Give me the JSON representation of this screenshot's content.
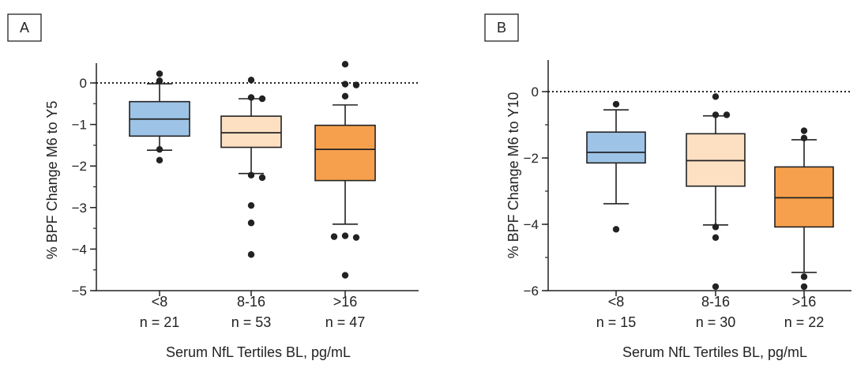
{
  "chart_data": [
    {
      "type": "box",
      "panel_label": "A",
      "ylabel": "% BPF Change M6 to Y5",
      "xlabel": "Serum NfL Tertiles BL, pg/mL",
      "ylim": [
        -5,
        0.5
      ],
      "yticks": [
        0,
        -1,
        -2,
        -3,
        -4,
        -5
      ],
      "reference_line": 0,
      "groups": [
        {
          "label": "<8",
          "n_label": "n = 21",
          "color": "#9dc3e6",
          "whisker_low": -1.62,
          "q1": -1.28,
          "median": -0.87,
          "q3": -0.45,
          "whisker_high": -0.02,
          "outliers": [
            0.22,
            0.05,
            -1.6,
            -1.86
          ]
        },
        {
          "label": "8-16",
          "n_label": "n = 53",
          "color": "#fde0c2",
          "whisker_low": -2.18,
          "q1": -1.55,
          "median": -1.2,
          "q3": -0.8,
          "whisker_high": -0.38,
          "outliers": [
            0.07,
            -0.35,
            -0.38,
            -2.22,
            -2.28,
            -2.95,
            -3.37,
            -4.13
          ]
        },
        {
          "label": ">16",
          "n_label": "n = 47",
          "color": "#f6a04d",
          "whisker_low": -3.4,
          "q1": -2.35,
          "median": -1.6,
          "q3": -1.02,
          "whisker_high": -0.53,
          "outliers": [
            0.45,
            -0.03,
            -0.05,
            -0.32,
            -3.68,
            -3.72,
            -3.7,
            -4.63
          ]
        }
      ]
    },
    {
      "type": "box",
      "panel_label": "B",
      "ylabel": "% BPF Change M6 to Y10",
      "xlabel": "Serum NfL Tertiles BL, pg/mL",
      "ylim": [
        -6.5,
        1
      ],
      "yticks": [
        0,
        -2,
        -4,
        -6
      ],
      "reference_line": 0,
      "groups": [
        {
          "label": "<8",
          "n_label": "n = 15",
          "color": "#9dc3e6",
          "whisker_low": -3.38,
          "q1": -2.15,
          "median": -1.83,
          "q3": -1.22,
          "whisker_high": -0.55,
          "outliers": [
            -0.38,
            -4.15
          ]
        },
        {
          "label": "8-16",
          "n_label": "n = 30",
          "color": "#fde0c2",
          "whisker_low": -4.02,
          "q1": -2.85,
          "median": -2.08,
          "q3": -1.27,
          "whisker_high": -0.73,
          "outliers": [
            -0.15,
            -0.7,
            -0.7,
            -4.08,
            -4.4,
            -5.88
          ]
        },
        {
          "label": ">16",
          "n_label": "n = 22",
          "color": "#f6a04d",
          "whisker_low": -5.45,
          "q1": -4.08,
          "median": -3.2,
          "q3": -2.27,
          "whisker_high": -1.45,
          "outliers": [
            -1.18,
            -1.4,
            -5.58,
            -5.88
          ]
        }
      ]
    }
  ]
}
